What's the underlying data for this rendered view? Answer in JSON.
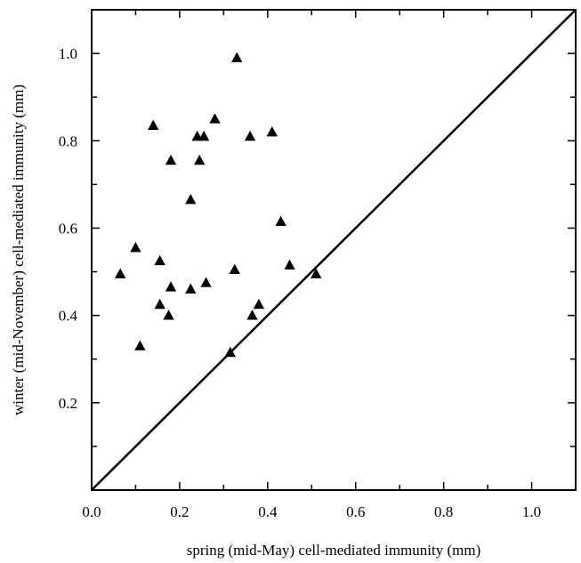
{
  "chart_data": {
    "type": "scatter",
    "title": "",
    "xlabel": "spring (mid-May) cell-mediated immunity (mm)",
    "ylabel": "winter (mid-November) cell-mediated immunity (mm)",
    "xlim": [
      0.0,
      1.1
    ],
    "ylim": [
      0.0,
      1.1
    ],
    "x_ticks": [
      "0.0",
      "0.2",
      "0.4",
      "0.6",
      "0.8",
      "1.0"
    ],
    "y_ticks": [
      "0.2",
      "0.4",
      "0.6",
      "0.8",
      "1.0"
    ],
    "reference_line": {
      "type": "identity",
      "description": "y = x"
    },
    "marker": "triangle",
    "grid": false,
    "series": [
      {
        "points": [
          {
            "x": 0.33,
            "y": 0.99
          },
          {
            "x": 0.28,
            "y": 0.85
          },
          {
            "x": 0.14,
            "y": 0.835
          },
          {
            "x": 0.41,
            "y": 0.82
          },
          {
            "x": 0.24,
            "y": 0.81
          },
          {
            "x": 0.255,
            "y": 0.81
          },
          {
            "x": 0.36,
            "y": 0.81
          },
          {
            "x": 0.18,
            "y": 0.755
          },
          {
            "x": 0.245,
            "y": 0.755
          },
          {
            "x": 0.225,
            "y": 0.665
          },
          {
            "x": 0.43,
            "y": 0.615
          },
          {
            "x": 0.1,
            "y": 0.555
          },
          {
            "x": 0.155,
            "y": 0.525
          },
          {
            "x": 0.45,
            "y": 0.515
          },
          {
            "x": 0.325,
            "y": 0.505
          },
          {
            "x": 0.065,
            "y": 0.495
          },
          {
            "x": 0.51,
            "y": 0.495
          },
          {
            "x": 0.18,
            "y": 0.465
          },
          {
            "x": 0.26,
            "y": 0.475
          },
          {
            "x": 0.225,
            "y": 0.46
          },
          {
            "x": 0.155,
            "y": 0.425
          },
          {
            "x": 0.38,
            "y": 0.425
          },
          {
            "x": 0.175,
            "y": 0.4
          },
          {
            "x": 0.365,
            "y": 0.4
          },
          {
            "x": 0.11,
            "y": 0.33
          },
          {
            "x": 0.315,
            "y": 0.315
          }
        ]
      }
    ]
  }
}
